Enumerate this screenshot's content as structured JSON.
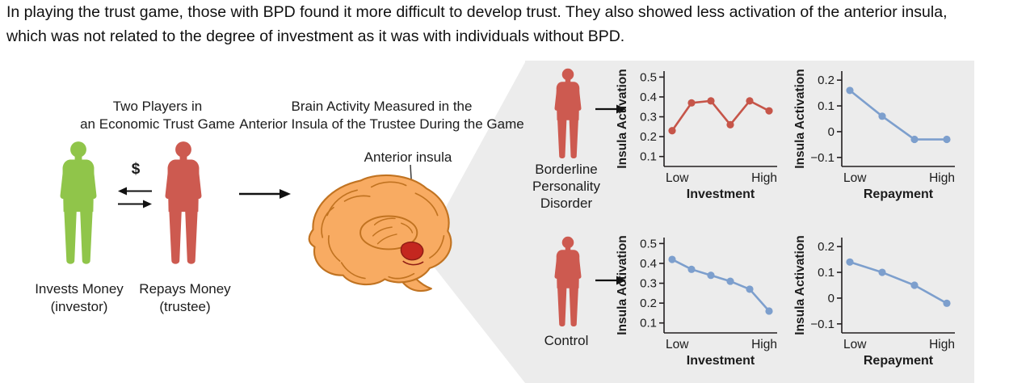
{
  "caption": {
    "line1": "In playing the trust game, those with BPD found it more difficult to develop trust. They also showed less activation of the anterior insula,",
    "line2": "which was not related to the degree of investment as it was with individuals without BPD."
  },
  "trust_game": {
    "title_line1": "Two Players in",
    "title_line2": "an Economic Trust Game",
    "dollar_sign": "$",
    "investor": {
      "label_line1": "Invests Money",
      "label_line2": "(investor)",
      "color": "#90c54a"
    },
    "trustee": {
      "label_line1": "Repays Money",
      "label_line2": "(trustee)",
      "color": "#cd5a50"
    }
  },
  "brain_section": {
    "title_line1": "Brain Activity Measured in the",
    "title_line2": "Anterior Insula of the Trustee During the Game",
    "region_label": "Anterior insula",
    "colors": {
      "fill": "#f8ab62",
      "outline": "#c17321",
      "highlight": "#c4271f"
    }
  },
  "panel": {
    "background": "#ececec",
    "person_color": "#cd5a50",
    "bpd_label_line1": "Borderline",
    "bpd_label_line2": "Personality",
    "bpd_label_line3": "Disorder",
    "control_label": "Control"
  },
  "chart_data": [
    {
      "id": "bpd-investment",
      "type": "line",
      "group": "Borderline Personality Disorder",
      "ylabel": "Insula Activation",
      "xlabel": "Investment",
      "x_tick_labels": [
        "Low",
        "High"
      ],
      "ytick_labels": [
        "0.5",
        "0.4",
        "0.3",
        "0.2",
        "0.1"
      ],
      "ytick_values": [
        0.5,
        0.4,
        0.3,
        0.2,
        0.1
      ],
      "ylim": [
        0.05,
        0.53
      ],
      "values": [
        0.23,
        0.37,
        0.38,
        0.26,
        0.38,
        0.33
      ],
      "color": "#c65549"
    },
    {
      "id": "bpd-repayment",
      "type": "line",
      "group": "Borderline Personality Disorder",
      "ylabel": "Insula Activation",
      "xlabel": "Repayment",
      "x_tick_labels": [
        "Low",
        "High"
      ],
      "ytick_labels": [
        "0.2",
        "0.1",
        "0",
        "−0.1"
      ],
      "ytick_values": [
        0.2,
        0.1,
        0,
        -0.1
      ],
      "ylim": [
        -0.135,
        0.235
      ],
      "values": [
        0.16,
        0.06,
        -0.03,
        -0.03
      ],
      "color": "#7d9fcd"
    },
    {
      "id": "control-investment",
      "type": "line",
      "group": "Control",
      "ylabel": "Insula Activation",
      "xlabel": "Investment",
      "x_tick_labels": [
        "Low",
        "High"
      ],
      "ytick_labels": [
        "0.5",
        "0.4",
        "0.3",
        "0.2",
        "0.1"
      ],
      "ytick_values": [
        0.5,
        0.4,
        0.3,
        0.2,
        0.1
      ],
      "ylim": [
        0.05,
        0.53
      ],
      "values": [
        0.42,
        0.37,
        0.34,
        0.31,
        0.27,
        0.16
      ],
      "color": "#7d9fcd"
    },
    {
      "id": "control-repayment",
      "type": "line",
      "group": "Control",
      "ylabel": "Insula Activation",
      "xlabel": "Repayment",
      "x_tick_labels": [
        "Low",
        "High"
      ],
      "ytick_labels": [
        "0.2",
        "0.1",
        "0",
        "−0.1"
      ],
      "ytick_values": [
        0.2,
        0.1,
        0,
        -0.1
      ],
      "ylim": [
        -0.135,
        0.235
      ],
      "values": [
        0.14,
        0.1,
        0.05,
        -0.02
      ],
      "color": "#7d9fcd"
    }
  ]
}
